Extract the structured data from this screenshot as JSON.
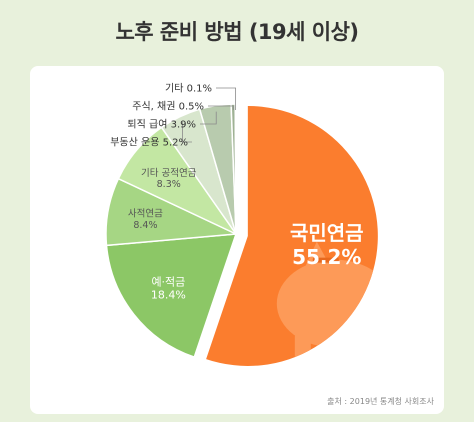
{
  "title": "노후 준비 방법 (19세 이상)",
  "source": "출처 : 2019년 통계청 사회조사",
  "colors": {
    "background": "#e8f1dc",
    "card": "#ffffff",
    "big_slice": "#fb7d2e",
    "big_slice_text": "#ffffff",
    "small_slice_text": "#ffffff",
    "leader_lines": "#8a8a8a",
    "outside_label_text": "#333333"
  },
  "chart_data": {
    "type": "pie",
    "categories": [
      "국민연금",
      "예·적금",
      "사적연금",
      "기타 공적연금",
      "부동산 운용",
      "퇴직 급여",
      "주식, 채권",
      "기타"
    ],
    "values": [
      55.2,
      18.4,
      8.4,
      8.3,
      5.2,
      3.9,
      0.5,
      0.1
    ],
    "value_labels": [
      "55.2%",
      "18.4%",
      "8.4%",
      "8.3%",
      "5.2%",
      "3.9%",
      "0.5%",
      "0.1%"
    ],
    "outside_labels": [
      {
        "index": 7,
        "text": "기타 0.1%"
      },
      {
        "index": 6,
        "text": "주식, 채권 0.5%"
      },
      {
        "index": 5,
        "text": "퇴직 급여 3.9%"
      },
      {
        "index": 4,
        "text": "부동산 운용 5.2%"
      }
    ],
    "colors": [
      "#fb7d2e",
      "#8cc766",
      "#a6d684",
      "#c3e7a3",
      "#d8e6cd",
      "#b8cbae",
      "#9fb295",
      "#7e9575"
    ]
  }
}
